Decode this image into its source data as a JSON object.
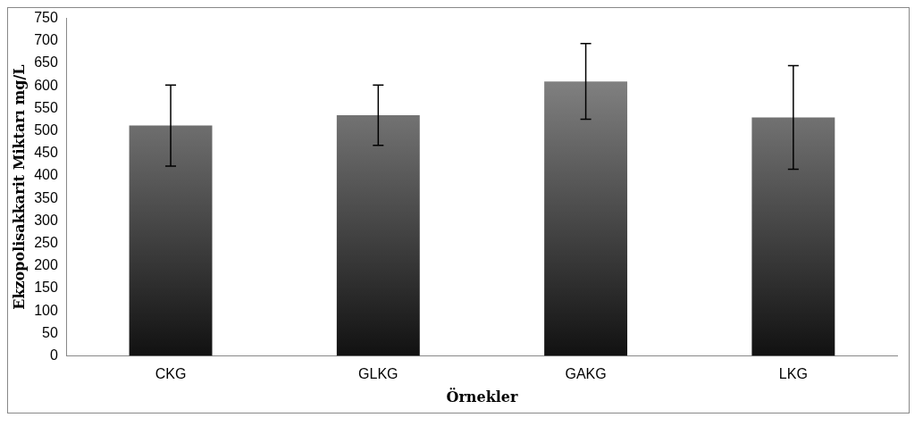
{
  "chart_data": {
    "type": "bar",
    "xlabel": "Örnekler",
    "ylabel": "Ekzopolisakkarit Miktarı mg/L",
    "categories": [
      "CKG",
      "GLKG",
      "GAKG",
      "LKG"
    ],
    "values": [
      512,
      535,
      610,
      530
    ],
    "errors": [
      90,
      67,
      84,
      115
    ],
    "color": "#808080",
    "ylim": [
      0,
      750
    ],
    "yticks": [
      0,
      50,
      100,
      150,
      200,
      250,
      300,
      350,
      400,
      450,
      500,
      550,
      600,
      650,
      700,
      750
    ],
    "grid": false,
    "legend": false
  }
}
